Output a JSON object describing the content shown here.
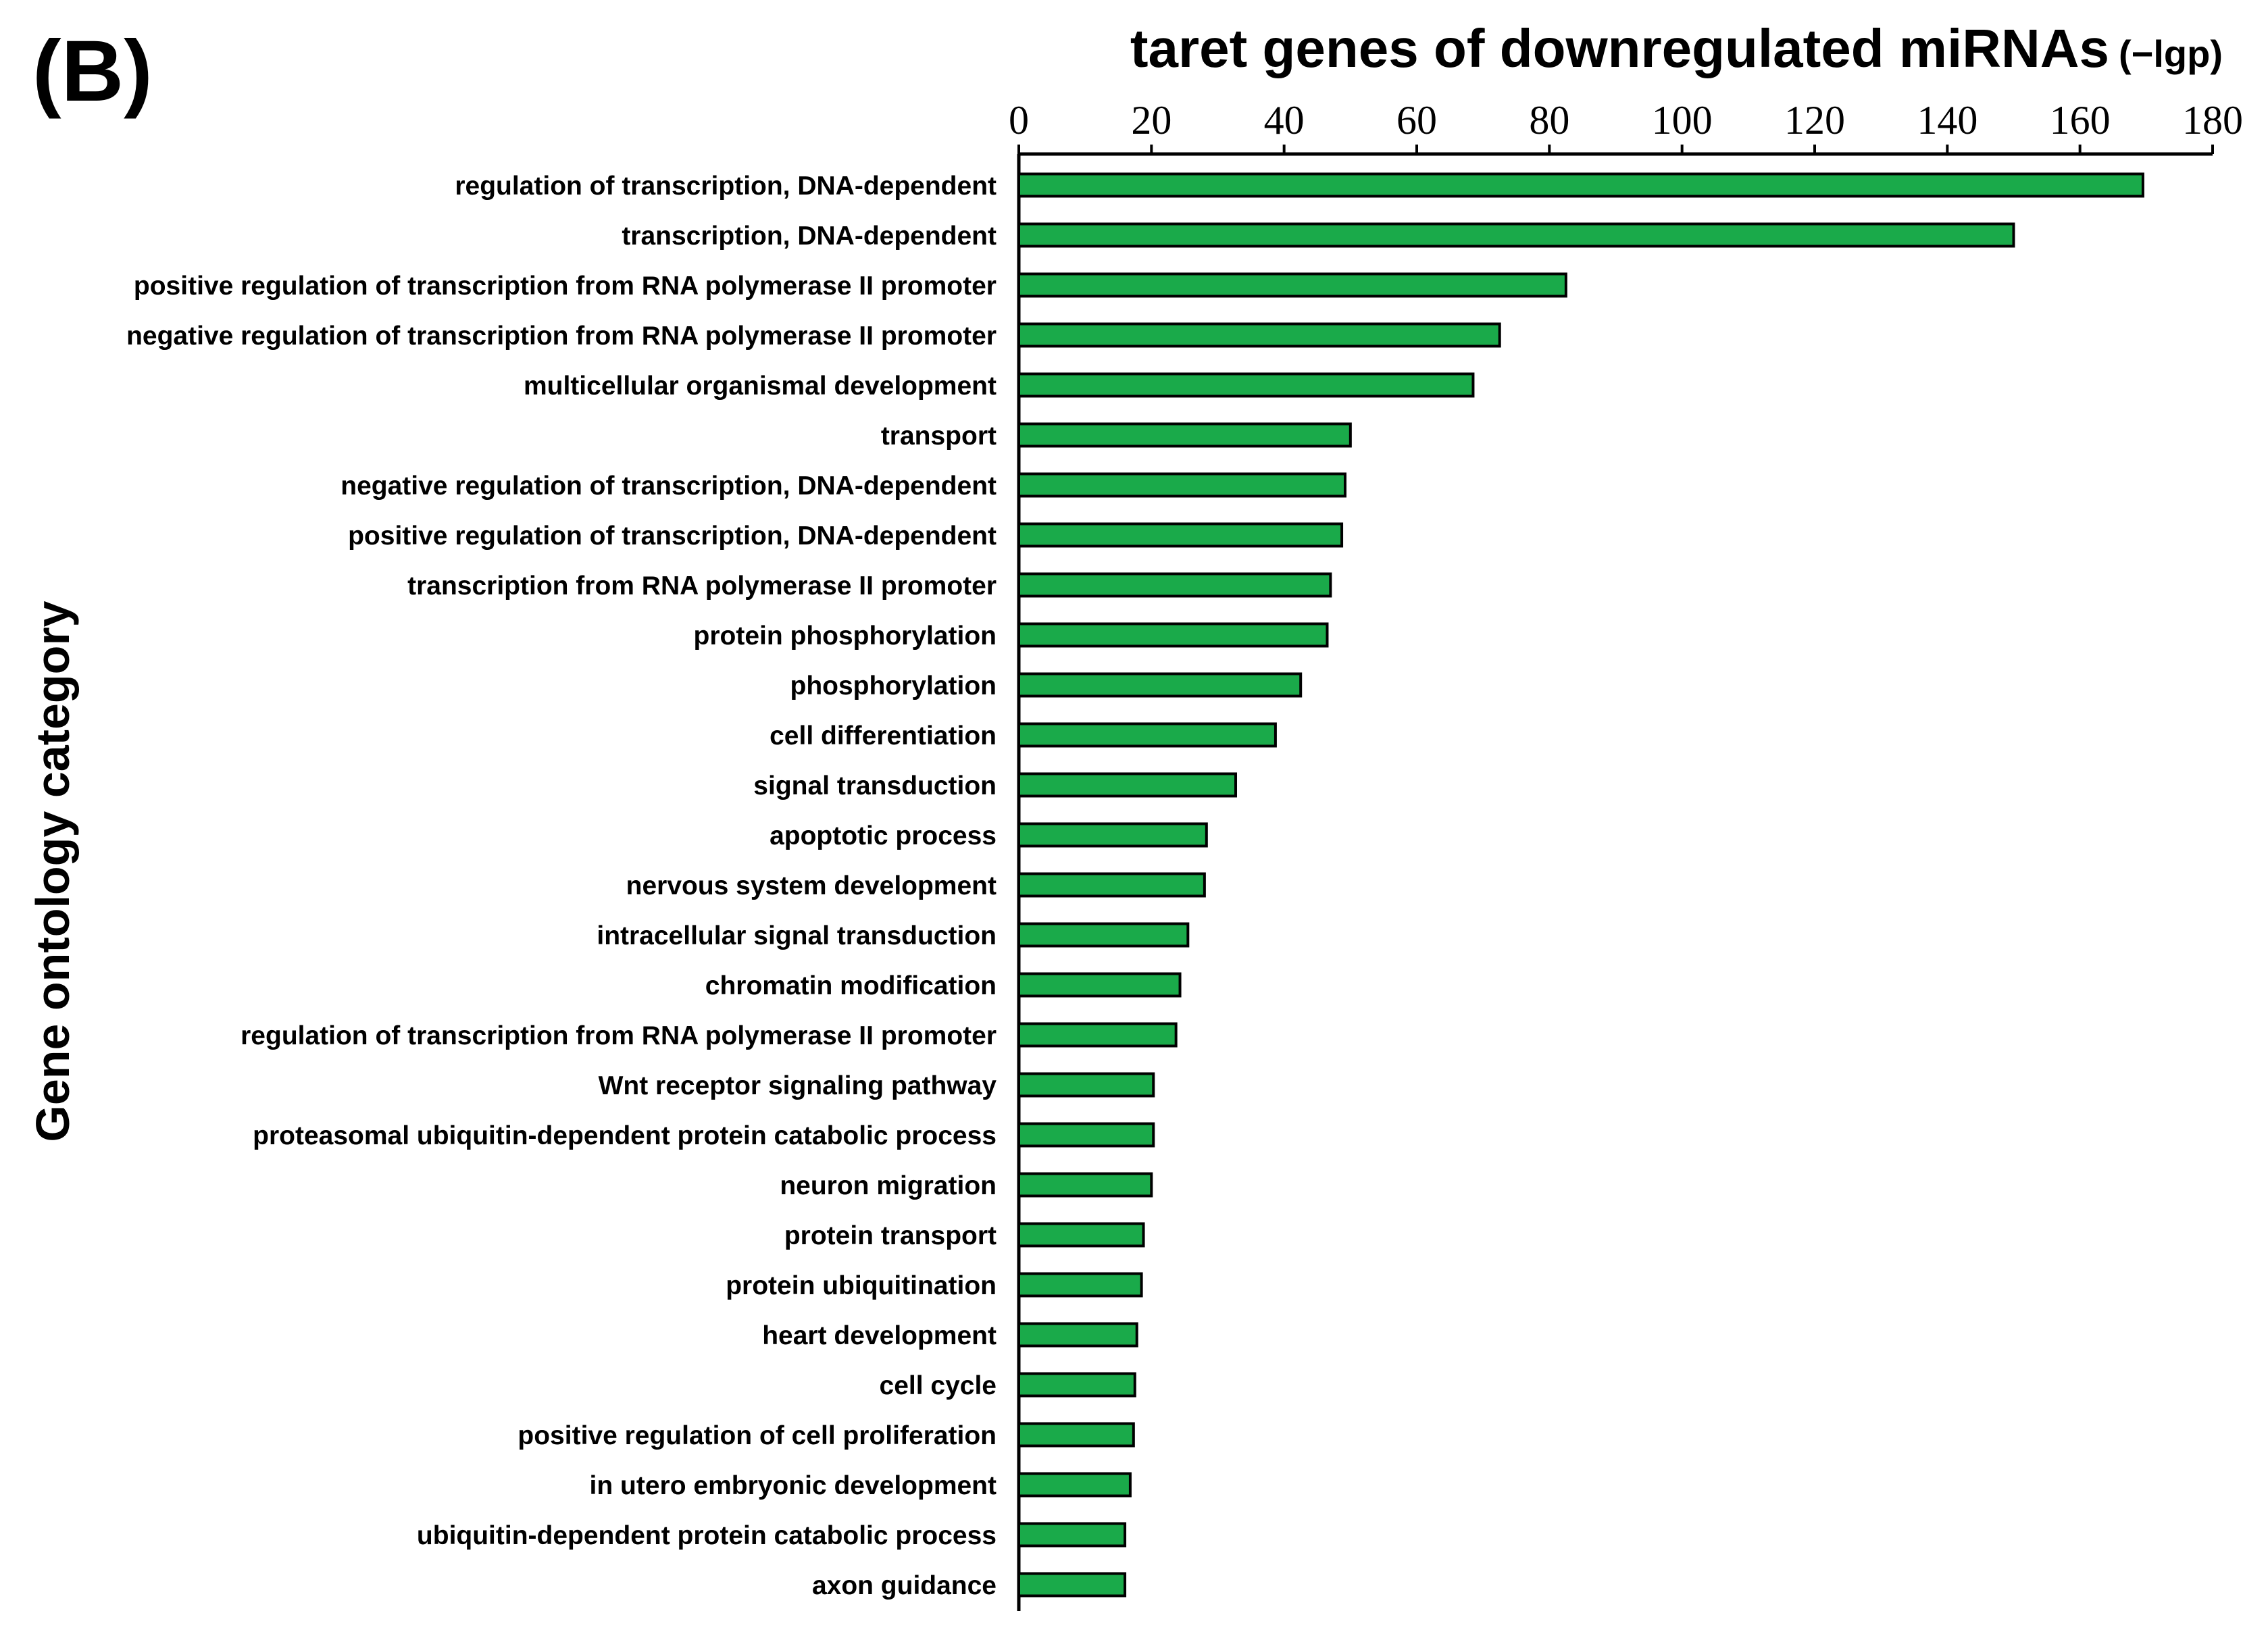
{
  "panel_label": "(B)",
  "chart_data": {
    "type": "bar",
    "orientation": "horizontal",
    "title": "taret genes of downregulated miRNAs",
    "title_unit": "(−lgp)",
    "xlabel": "−lgp",
    "ylabel": "Gene ontology category",
    "xlim": [
      0,
      180
    ],
    "xticks": [
      0,
      20,
      40,
      60,
      80,
      100,
      120,
      140,
      160,
      180
    ],
    "x_axis_position": "top",
    "bar_color": "#1aaa4a",
    "bar_edge_color": "#000000",
    "categories": [
      "regulation of transcription, DNA-dependent",
      "transcription, DNA-dependent",
      "positive regulation of transcription from RNA polymerase II promoter",
      "negative regulation of transcription from RNA polymerase II promoter",
      "multicellular organismal development",
      "transport",
      "negative regulation of transcription, DNA-dependent",
      "positive regulation of transcription, DNA-dependent",
      "transcription from RNA polymerase II promoter",
      "protein phosphorylation",
      "phosphorylation",
      "cell differentiation",
      "signal transduction",
      "apoptotic process",
      "nervous system development",
      "intracellular signal transduction",
      "chromatin modification",
      "regulation of transcription from RNA polymerase II promoter",
      "Wnt receptor signaling pathway",
      "proteasomal ubiquitin-dependent protein catabolic process",
      "neuron migration",
      "protein transport",
      "protein ubiquitination",
      "heart development",
      "cell cycle",
      "positive regulation of cell proliferation",
      "in utero embryonic development",
      "ubiquitin-dependent protein catabolic process",
      "axon guidance"
    ],
    "values": [
      169.5,
      150,
      82.5,
      72.5,
      68.5,
      50,
      49.2,
      48.7,
      47,
      46.5,
      42.5,
      38.7,
      32.7,
      28.3,
      28,
      25.5,
      24.3,
      23.7,
      20.3,
      20.3,
      20,
      18.8,
      18.5,
      17.8,
      17.5,
      17.3,
      16.8,
      16,
      16
    ]
  }
}
